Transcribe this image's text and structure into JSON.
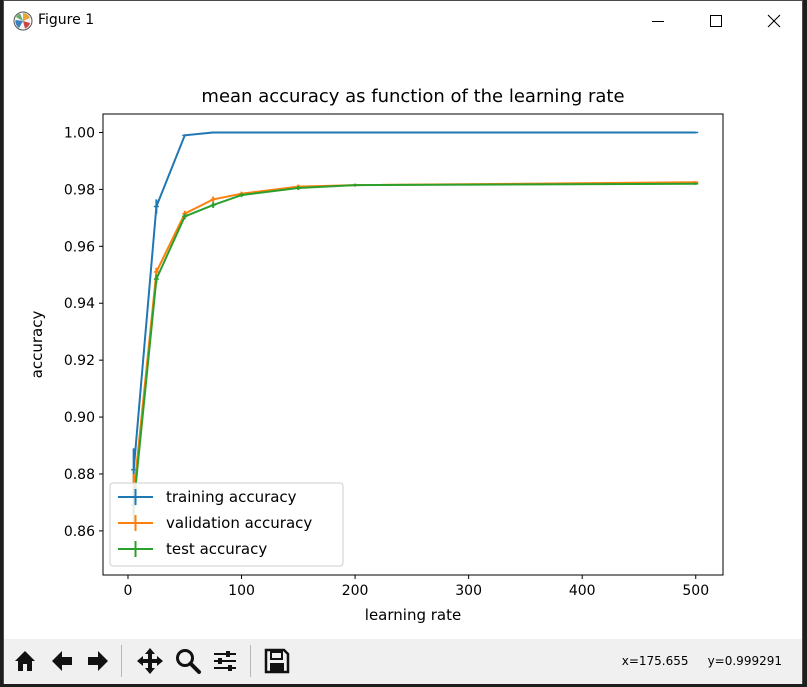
{
  "window": {
    "title": "Figure 1",
    "controls": [
      "minimize",
      "maximize",
      "close"
    ]
  },
  "toolbar": {
    "buttons": [
      "home-icon",
      "back-arrow-icon",
      "forward-arrow-icon",
      "pan-icon",
      "zoom-icon",
      "configure-subplots-icon",
      "save-icon"
    ],
    "coords_x": "x=175.655",
    "coords_y": "y=0.999291"
  },
  "colors": {
    "training": "#1f77b4",
    "validation": "#ff7f0e",
    "test": "#2ca02c"
  },
  "chart_data": {
    "type": "line",
    "title": "mean accuracy as function of the learning rate",
    "xlabel": "learning rate",
    "ylabel": "accuracy",
    "xlim": [
      -22,
      524
    ],
    "ylim": [
      0.8445,
      1.0065
    ],
    "xticks": [
      0,
      100,
      200,
      300,
      400,
      500
    ],
    "yticks": [
      0.86,
      0.88,
      0.9,
      0.92,
      0.94,
      0.96,
      0.98,
      1.0
    ],
    "ytick_labels": [
      "0.86",
      "0.88",
      "0.90",
      "0.92",
      "0.94",
      "0.96",
      "0.98",
      "1.00"
    ],
    "legend_loc": "lower left",
    "grid": false,
    "series": [
      {
        "name": "training accuracy",
        "color": "#1f77b4",
        "x": [
          5,
          25,
          50,
          75,
          100,
          150,
          200,
          500
        ],
        "y": [
          0.8815,
          0.974,
          0.999,
          1.0,
          1.0,
          1.0,
          1.0,
          1.0
        ],
        "err": [
          0.0075,
          0.0025,
          0.0003,
          0,
          0,
          0,
          0,
          0
        ]
      },
      {
        "name": "validation accuracy",
        "color": "#ff7f0e",
        "x": [
          5,
          25,
          50,
          75,
          100,
          150,
          200,
          500
        ],
        "y": [
          0.873,
          0.951,
          0.9715,
          0.9765,
          0.9785,
          0.981,
          0.9815,
          0.9825
        ],
        "err": [
          0.007,
          0.0015,
          0.001,
          0.001,
          0.0007,
          0.0007,
          0.0005,
          0.0004
        ]
      },
      {
        "name": "test accuracy",
        "color": "#2ca02c",
        "x": [
          5,
          25,
          50,
          75,
          100,
          150,
          200,
          500
        ],
        "y": [
          0.869,
          0.9485,
          0.9705,
          0.9745,
          0.978,
          0.9805,
          0.9815,
          0.982
        ],
        "err": [
          0.006,
          0.0015,
          0.001,
          0.001,
          0.0007,
          0.0007,
          0.0005,
          0.0004
        ]
      }
    ]
  }
}
